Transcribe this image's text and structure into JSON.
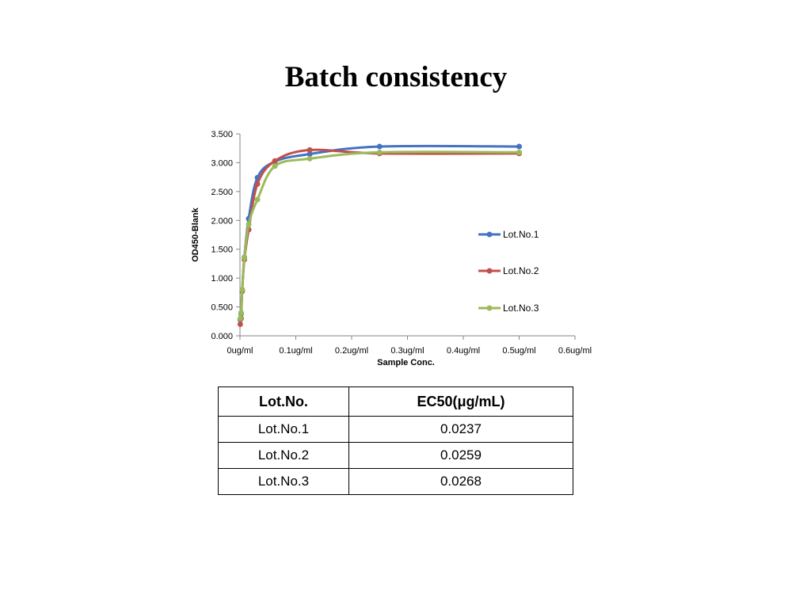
{
  "page": {
    "title": "Batch consistency"
  },
  "chart_data": {
    "type": "line",
    "title": "",
    "xlabel": "Sample Conc.",
    "ylabel": "OD450-Blank",
    "xlim": [
      0,
      0.6
    ],
    "ylim": [
      0,
      3.5
    ],
    "x_ticks": [
      0,
      0.1,
      0.2,
      0.3,
      0.4,
      0.5,
      0.6
    ],
    "x_tick_labels": [
      "0ug/ml",
      "0.1ug/ml",
      "0.2ug/ml",
      "0.3ug/ml",
      "0.4ug/ml",
      "0.5ug/ml",
      "0.6ug/ml"
    ],
    "y_ticks": [
      0,
      0.5,
      1.0,
      1.5,
      2.0,
      2.5,
      3.0,
      3.5
    ],
    "y_tick_labels": [
      "0.000",
      "0.500",
      "1.000",
      "1.500",
      "2.000",
      "2.500",
      "3.000",
      "3.500"
    ],
    "grid": false,
    "legend_position": "right",
    "series": [
      {
        "name": "Lot.No.1",
        "color": "#4472C4",
        "x": [
          0.0005,
          0.002,
          0.004,
          0.0078,
          0.0156,
          0.03125,
          0.0625,
          0.125,
          0.25,
          0.5
        ],
        "y": [
          0.28,
          0.38,
          0.8,
          1.36,
          2.03,
          2.74,
          3.02,
          3.15,
          3.28,
          3.28
        ]
      },
      {
        "name": "Lot.No.2",
        "color": "#C0504D",
        "x": [
          0.0005,
          0.002,
          0.004,
          0.0078,
          0.0156,
          0.03125,
          0.0625,
          0.125,
          0.25,
          0.5
        ],
        "y": [
          0.2,
          0.3,
          0.77,
          1.32,
          1.84,
          2.63,
          3.03,
          3.22,
          3.16,
          3.16
        ]
      },
      {
        "name": "Lot.No.3",
        "color": "#9BBB59",
        "x": [
          0.0005,
          0.002,
          0.004,
          0.0078,
          0.0156,
          0.03125,
          0.0625,
          0.125,
          0.25,
          0.5
        ],
        "y": [
          0.3,
          0.4,
          0.8,
          1.35,
          1.93,
          2.36,
          2.94,
          3.07,
          3.18,
          3.18
        ]
      }
    ]
  },
  "table": {
    "headers": [
      "Lot.No.",
      "EC50(μg/mL)"
    ],
    "rows": [
      [
        "Lot.No.1",
        "0.0237"
      ],
      [
        "Lot.No.2",
        "0.0259"
      ],
      [
        "Lot.No.3",
        "0.0268"
      ]
    ]
  }
}
